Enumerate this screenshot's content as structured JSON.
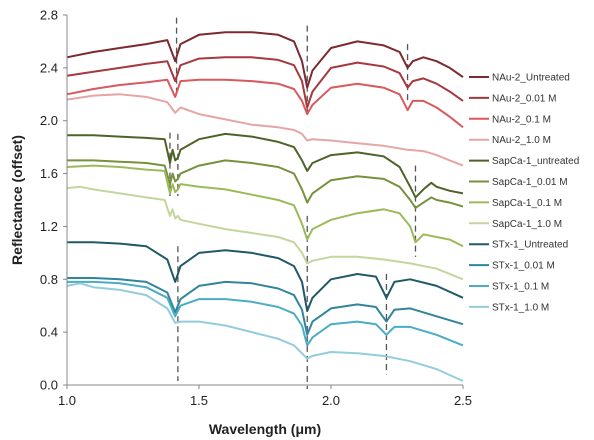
{
  "chart_data": {
    "type": "line",
    "xlabel": "Wavelength (μm)",
    "ylabel": "Reflectance (offset)",
    "xlim": [
      1.0,
      2.5
    ],
    "ylim": [
      0.0,
      2.8
    ],
    "xticks": [
      "1.0",
      "1.5",
      "2.0",
      "2.5"
    ],
    "yticks": [
      "0.0",
      "0.4",
      "0.8",
      "1.2",
      "1.6",
      "2.0",
      "2.4",
      "2.8"
    ],
    "grid": false,
    "legend_position": "right",
    "reference_lines": [
      {
        "x": 1.415,
        "y_range": [
          2.18,
          2.78
        ]
      },
      {
        "x": 1.91,
        "y_range": [
          2.05,
          2.72
        ]
      },
      {
        "x": 2.29,
        "y_range": [
          2.15,
          2.58
        ]
      },
      {
        "x": 1.39,
        "y_range": [
          1.43,
          1.91
        ]
      },
      {
        "x": 1.42,
        "y_range": [
          1.43,
          1.9
        ]
      },
      {
        "x": 2.32,
        "y_range": [
          0.97,
          1.66
        ]
      },
      {
        "x": 1.42,
        "y_range": [
          0.03,
          1.05
        ]
      },
      {
        "x": 1.91,
        "y_range": [
          -0.03,
          1.28
        ]
      },
      {
        "x": 2.21,
        "y_range": [
          0.08,
          0.84
        ]
      }
    ],
    "series": [
      {
        "name": "NAu-2_Untreated",
        "color": "#7a2a30",
        "x": [
          1.0,
          1.1,
          1.2,
          1.3,
          1.38,
          1.41,
          1.43,
          1.5,
          1.6,
          1.7,
          1.8,
          1.86,
          1.89,
          1.91,
          1.93,
          2.0,
          2.1,
          2.2,
          2.26,
          2.29,
          2.31,
          2.35,
          2.4,
          2.45,
          2.5
        ],
        "y": [
          2.48,
          2.52,
          2.55,
          2.58,
          2.61,
          2.45,
          2.58,
          2.65,
          2.67,
          2.67,
          2.65,
          2.6,
          2.45,
          2.25,
          2.38,
          2.55,
          2.6,
          2.57,
          2.52,
          2.4,
          2.45,
          2.48,
          2.45,
          2.4,
          2.33
        ]
      },
      {
        "name": "NAu-2_0.01 M",
        "color": "#a6383e",
        "x": [
          1.0,
          1.1,
          1.2,
          1.3,
          1.38,
          1.41,
          1.43,
          1.5,
          1.6,
          1.7,
          1.8,
          1.86,
          1.89,
          1.91,
          1.93,
          2.0,
          2.1,
          2.2,
          2.26,
          2.29,
          2.31,
          2.35,
          2.4,
          2.45,
          2.5
        ],
        "y": [
          2.34,
          2.37,
          2.4,
          2.43,
          2.45,
          2.3,
          2.42,
          2.47,
          2.48,
          2.48,
          2.46,
          2.42,
          2.3,
          2.1,
          2.22,
          2.4,
          2.44,
          2.41,
          2.36,
          2.25,
          2.3,
          2.32,
          2.28,
          2.22,
          2.15
        ]
      },
      {
        "name": "NAu-2_0.1 M",
        "color": "#d9595c",
        "x": [
          1.0,
          1.1,
          1.2,
          1.3,
          1.38,
          1.41,
          1.43,
          1.5,
          1.6,
          1.7,
          1.8,
          1.86,
          1.89,
          1.91,
          1.93,
          2.0,
          2.1,
          2.2,
          2.26,
          2.29,
          2.31,
          2.35,
          2.4,
          2.45,
          2.5
        ],
        "y": [
          2.2,
          2.24,
          2.27,
          2.29,
          2.31,
          2.18,
          2.3,
          2.31,
          2.31,
          2.3,
          2.28,
          2.24,
          2.15,
          2.05,
          2.12,
          2.25,
          2.28,
          2.25,
          2.2,
          2.08,
          2.15,
          2.15,
          2.1,
          2.03,
          1.95
        ]
      },
      {
        "name": "NAu-2_1.0 M",
        "color": "#e6a5a5",
        "x": [
          1.0,
          1.1,
          1.2,
          1.3,
          1.38,
          1.41,
          1.43,
          1.5,
          1.6,
          1.7,
          1.8,
          1.86,
          1.89,
          1.91,
          1.93,
          2.0,
          2.1,
          2.2,
          2.29,
          2.35,
          2.4,
          2.45,
          2.5
        ],
        "y": [
          2.16,
          2.19,
          2.2,
          2.18,
          2.14,
          2.06,
          2.1,
          2.05,
          2.01,
          1.97,
          1.95,
          1.93,
          1.9,
          1.85,
          1.86,
          1.85,
          1.83,
          1.81,
          1.78,
          1.77,
          1.74,
          1.7,
          1.66
        ]
      },
      {
        "name": "SapCa-1_untreated",
        "color": "#4f6228",
        "x": [
          1.0,
          1.1,
          1.2,
          1.3,
          1.37,
          1.39,
          1.4,
          1.41,
          1.42,
          1.43,
          1.5,
          1.6,
          1.7,
          1.8,
          1.86,
          1.89,
          1.91,
          1.93,
          2.0,
          2.1,
          2.2,
          2.26,
          2.3,
          2.32,
          2.35,
          2.38,
          2.4,
          2.45,
          2.5
        ],
        "y": [
          1.89,
          1.89,
          1.88,
          1.87,
          1.86,
          1.68,
          1.78,
          1.7,
          1.72,
          1.78,
          1.86,
          1.9,
          1.88,
          1.84,
          1.8,
          1.7,
          1.62,
          1.68,
          1.74,
          1.76,
          1.73,
          1.65,
          1.5,
          1.42,
          1.48,
          1.53,
          1.5,
          1.47,
          1.45
        ]
      },
      {
        "name": "SapCa-1_0.01 M",
        "color": "#76923c",
        "x": [
          1.0,
          1.1,
          1.2,
          1.3,
          1.37,
          1.39,
          1.4,
          1.41,
          1.42,
          1.43,
          1.5,
          1.6,
          1.7,
          1.8,
          1.86,
          1.89,
          1.91,
          1.93,
          2.0,
          2.1,
          2.2,
          2.26,
          2.3,
          2.32,
          2.35,
          2.38,
          2.4,
          2.45,
          2.5
        ],
        "y": [
          1.7,
          1.7,
          1.69,
          1.68,
          1.66,
          1.52,
          1.6,
          1.54,
          1.56,
          1.6,
          1.66,
          1.7,
          1.68,
          1.65,
          1.6,
          1.48,
          1.38,
          1.45,
          1.55,
          1.58,
          1.56,
          1.5,
          1.4,
          1.34,
          1.38,
          1.42,
          1.4,
          1.38,
          1.35
        ]
      },
      {
        "name": "SapCa-1_0.1 M",
        "color": "#9bbb59",
        "x": [
          1.0,
          1.1,
          1.2,
          1.3,
          1.37,
          1.39,
          1.4,
          1.41,
          1.42,
          1.43,
          1.5,
          1.6,
          1.7,
          1.8,
          1.86,
          1.89,
          1.91,
          1.93,
          2.0,
          2.1,
          2.2,
          2.26,
          2.3,
          2.32,
          2.35,
          2.4,
          2.45,
          2.5
        ],
        "y": [
          1.65,
          1.66,
          1.65,
          1.63,
          1.62,
          1.45,
          1.52,
          1.46,
          1.48,
          1.52,
          1.5,
          1.48,
          1.44,
          1.4,
          1.36,
          1.22,
          1.1,
          1.18,
          1.25,
          1.3,
          1.33,
          1.3,
          1.2,
          1.08,
          1.14,
          1.12,
          1.1,
          1.05
        ]
      },
      {
        "name": "SapCa-1_1.0 M",
        "color": "#c3d69b",
        "x": [
          1.0,
          1.05,
          1.1,
          1.2,
          1.3,
          1.37,
          1.39,
          1.4,
          1.41,
          1.42,
          1.43,
          1.5,
          1.6,
          1.7,
          1.8,
          1.86,
          1.89,
          1.91,
          1.93,
          2.0,
          2.1,
          2.2,
          2.3,
          2.4,
          2.5
        ],
        "y": [
          1.49,
          1.5,
          1.48,
          1.45,
          1.42,
          1.4,
          1.28,
          1.33,
          1.26,
          1.28,
          1.25,
          1.22,
          1.18,
          1.15,
          1.12,
          1.08,
          1.0,
          0.92,
          0.94,
          0.97,
          0.97,
          0.95,
          0.92,
          0.88,
          0.8
        ]
      },
      {
        "name": "STx-1_Untreated",
        "color": "#215967",
        "x": [
          1.0,
          1.1,
          1.2,
          1.3,
          1.38,
          1.41,
          1.43,
          1.5,
          1.6,
          1.7,
          1.8,
          1.86,
          1.89,
          1.91,
          1.93,
          2.0,
          2.1,
          2.17,
          2.21,
          2.24,
          2.3,
          2.4,
          2.5
        ],
        "y": [
          1.08,
          1.08,
          1.07,
          1.05,
          0.95,
          0.78,
          0.9,
          1.0,
          1.02,
          1.0,
          0.96,
          0.9,
          0.78,
          0.56,
          0.66,
          0.8,
          0.84,
          0.82,
          0.66,
          0.78,
          0.8,
          0.75,
          0.66
        ]
      },
      {
        "name": "STx-1_0.01 M",
        "color": "#31859c",
        "x": [
          1.0,
          1.1,
          1.2,
          1.3,
          1.38,
          1.41,
          1.43,
          1.5,
          1.6,
          1.7,
          1.8,
          1.86,
          1.89,
          1.91,
          1.93,
          2.0,
          2.1,
          2.17,
          2.21,
          2.24,
          2.3,
          2.4,
          2.5
        ],
        "y": [
          0.81,
          0.81,
          0.8,
          0.78,
          0.7,
          0.55,
          0.65,
          0.75,
          0.78,
          0.77,
          0.73,
          0.68,
          0.57,
          0.38,
          0.48,
          0.58,
          0.61,
          0.59,
          0.48,
          0.57,
          0.58,
          0.52,
          0.46
        ]
      },
      {
        "name": "STx-1_0.1 M",
        "color": "#4bacc6",
        "x": [
          1.0,
          1.1,
          1.2,
          1.3,
          1.38,
          1.41,
          1.43,
          1.5,
          1.6,
          1.7,
          1.8,
          1.86,
          1.89,
          1.91,
          1.93,
          2.0,
          2.1,
          2.17,
          2.21,
          2.24,
          2.3,
          2.4,
          2.5
        ],
        "y": [
          0.78,
          0.78,
          0.77,
          0.74,
          0.66,
          0.52,
          0.6,
          0.65,
          0.65,
          0.63,
          0.59,
          0.54,
          0.45,
          0.3,
          0.36,
          0.46,
          0.48,
          0.46,
          0.38,
          0.44,
          0.44,
          0.38,
          0.3
        ]
      },
      {
        "name": "STx-1_1.0 M",
        "color": "#93cddd",
        "x": [
          1.0,
          1.05,
          1.1,
          1.2,
          1.3,
          1.38,
          1.41,
          1.43,
          1.5,
          1.6,
          1.7,
          1.8,
          1.86,
          1.89,
          1.91,
          1.93,
          2.0,
          2.1,
          2.2,
          2.3,
          2.4,
          2.5
        ],
        "y": [
          0.75,
          0.77,
          0.74,
          0.72,
          0.68,
          0.58,
          0.47,
          0.48,
          0.48,
          0.45,
          0.4,
          0.35,
          0.3,
          0.24,
          0.2,
          0.22,
          0.25,
          0.24,
          0.22,
          0.18,
          0.12,
          0.03
        ]
      }
    ]
  }
}
